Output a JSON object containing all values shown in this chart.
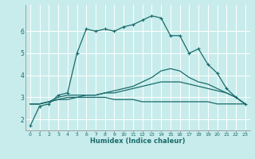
{
  "xlabel": "Humidex (Indice chaleur)",
  "bg_color": "#c8ecec",
  "grid_color": "#ffffff",
  "line_color": "#1a6b6b",
  "ylim": [
    1.5,
    7.2
  ],
  "xlim": [
    -0.5,
    23.5
  ],
  "y_ticks": [
    2,
    3,
    4,
    5,
    6
  ],
  "x_ticks": [
    0,
    1,
    2,
    3,
    4,
    5,
    6,
    7,
    8,
    9,
    10,
    11,
    12,
    13,
    14,
    15,
    16,
    17,
    18,
    19,
    20,
    21,
    22,
    23
  ],
  "series1_x": [
    0,
    1,
    2,
    3,
    4,
    5,
    6,
    7,
    8,
    9,
    10,
    11,
    12,
    13,
    14,
    15,
    16,
    17,
    18,
    19,
    20,
    21,
    22,
    23
  ],
  "series1_y": [
    1.7,
    2.6,
    2.7,
    3.1,
    3.2,
    5.0,
    6.1,
    6.0,
    6.1,
    6.0,
    6.2,
    6.3,
    6.5,
    6.7,
    6.6,
    5.8,
    5.8,
    5.0,
    5.2,
    4.5,
    4.1,
    3.4,
    3.0,
    2.7
  ],
  "series2_x": [
    0,
    1,
    2,
    3,
    4,
    5,
    6,
    7,
    8,
    9,
    10,
    11,
    12,
    13,
    14,
    15,
    16,
    17,
    18,
    19,
    20,
    21,
    22,
    23
  ],
  "series2_y": [
    2.7,
    2.7,
    2.8,
    3.0,
    3.1,
    3.1,
    3.1,
    3.1,
    3.2,
    3.3,
    3.4,
    3.5,
    3.7,
    3.9,
    4.2,
    4.3,
    4.2,
    3.9,
    3.7,
    3.6,
    3.4,
    3.2,
    3.0,
    2.7
  ],
  "series3_x": [
    0,
    1,
    2,
    3,
    4,
    5,
    6,
    7,
    8,
    9,
    10,
    11,
    12,
    13,
    14,
    15,
    16,
    17,
    18,
    19,
    20,
    21,
    22,
    23
  ],
  "series3_y": [
    2.7,
    2.7,
    2.8,
    2.9,
    3.0,
    3.0,
    3.1,
    3.1,
    3.2,
    3.2,
    3.3,
    3.4,
    3.5,
    3.6,
    3.7,
    3.7,
    3.7,
    3.6,
    3.5,
    3.4,
    3.3,
    3.2,
    3.0,
    2.7
  ],
  "series4_x": [
    0,
    1,
    2,
    3,
    4,
    5,
    6,
    7,
    8,
    9,
    10,
    11,
    12,
    13,
    14,
    15,
    16,
    17,
    18,
    19,
    20,
    21,
    22,
    23
  ],
  "series4_y": [
    2.7,
    2.7,
    2.8,
    2.9,
    2.9,
    3.0,
    3.0,
    3.0,
    3.0,
    2.9,
    2.9,
    2.9,
    2.8,
    2.8,
    2.8,
    2.8,
    2.8,
    2.8,
    2.8,
    2.8,
    2.7,
    2.7,
    2.7,
    2.7
  ]
}
